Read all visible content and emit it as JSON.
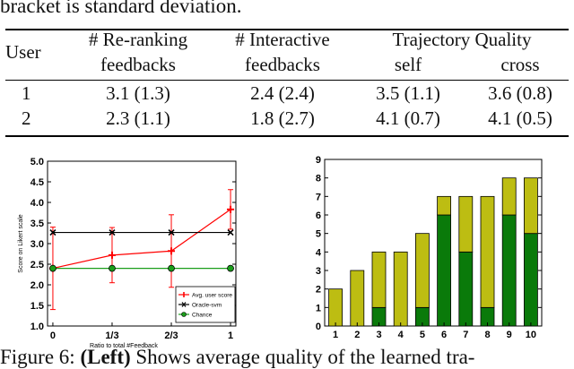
{
  "top_caption": "bracket is standard deviation.",
  "table": {
    "headers": {
      "user": "User",
      "rerank_l1": "# Re-ranking",
      "rerank_l2": "feedbacks",
      "inter_l1": "# Interactive",
      "inter_l2": "feedbacks",
      "traj": "Trajectory Quality",
      "self": "self",
      "cross": "cross"
    },
    "rows": [
      [
        "1",
        "3.1 (1.3)",
        "2.4 (2.4)",
        "3.5 (1.1)",
        "3.6 (0.8)"
      ],
      [
        "2",
        "2.3 (1.1)",
        "1.8 (2.7)",
        "4.1 (0.7)",
        "4.1 (0.5)"
      ]
    ]
  },
  "figure_caption": {
    "prefix": "Figure 6: ",
    "bold": "(Left)",
    "rest": " Shows average quality of the learned tra-"
  },
  "chart_data": [
    {
      "type": "line",
      "ylabel": "Score on Likert scale",
      "xlabel": "Ratio to total #Feedback",
      "x_ticks": [
        "0",
        "1/3",
        "2/3",
        "1"
      ],
      "x": [
        0,
        0.3333,
        0.6667,
        1
      ],
      "ylim": [
        1.0,
        5.0
      ],
      "y_ticks": [
        "1.0",
        "1.5",
        "2.0",
        "2.5",
        "3.0",
        "3.5",
        "4.0",
        "4.5",
        "5.0"
      ],
      "legend_position": "bottom-right",
      "series": [
        {
          "name": "Avg. user score",
          "color": "#ff0000",
          "marker": "plus",
          "values": [
            2.4,
            2.72,
            2.82,
            3.83
          ],
          "errors": [
            1.0,
            0.67,
            0.88,
            0.48
          ]
        },
        {
          "name": "Oracle-svm",
          "color": "#000000",
          "marker": "x",
          "values": [
            3.27,
            3.27,
            3.27,
            3.27
          ]
        },
        {
          "name": "Chance",
          "color": "#1a9e1a",
          "marker": "circle",
          "values": [
            2.4,
            2.4,
            2.4,
            2.4
          ]
        }
      ]
    },
    {
      "type": "bar",
      "stacked": true,
      "categories": [
        "1",
        "2",
        "3",
        "4",
        "5",
        "6",
        "7",
        "8",
        "9",
        "10"
      ],
      "ylim": [
        0,
        9
      ],
      "y_ticks": [
        "0",
        "1",
        "2",
        "3",
        "4",
        "5",
        "6",
        "7",
        "8",
        "9"
      ],
      "colors": {
        "bottom": "#0a7a0a",
        "top": "#bdbd12"
      },
      "series": [
        {
          "values": [
            0,
            0,
            1,
            0,
            1,
            6,
            4,
            1,
            6,
            5
          ]
        },
        {
          "values": [
            2,
            3,
            3,
            4,
            4,
            1,
            3,
            6,
            2,
            3
          ]
        }
      ]
    }
  ]
}
